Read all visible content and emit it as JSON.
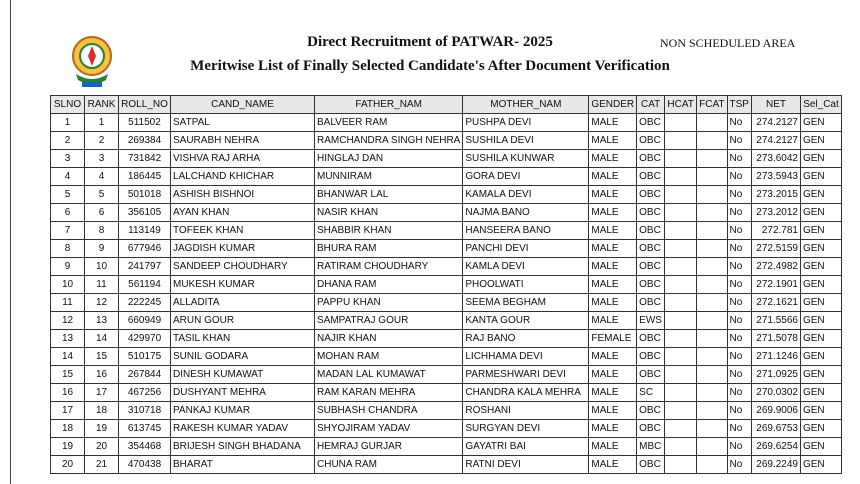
{
  "header": {
    "title": "Direct Recruitment of PATWAR- 2025",
    "area": "NON SCHEDULED AREA",
    "subtitle": "Meritwise List of Finally Selected Candidate's After Document Verification"
  },
  "table": {
    "columns": [
      "SLNO",
      "RANK",
      "ROLL_NO",
      "CAND_NAME",
      "FATHER_NAM",
      "MOTHER_NAM",
      "GENDER",
      "CAT",
      "HCAT",
      "FCAT",
      "TSP",
      "NET",
      "Sel_Cat"
    ],
    "rows": [
      [
        "1",
        "1",
        "511502",
        "SATPAL",
        "BALVEER RAM",
        "PUSHPA DEVI",
        "MALE",
        "OBC",
        null,
        null,
        "No",
        "274.2127",
        "GEN"
      ],
      [
        "2",
        "2",
        "269384",
        "SAURABH NEHRA",
        "RAMCHANDRA SINGH NEHRA",
        "SUSHILA DEVI",
        "MALE",
        "OBC",
        null,
        null,
        "No",
        "274.2127",
        "GEN"
      ],
      [
        "3",
        "3",
        "731842",
        "VISHVA RAJ ARHA",
        "HINGLAJ DAN",
        "SUSHILA KUNWAR",
        "MALE",
        "OBC",
        null,
        null,
        "No",
        "273.6042",
        "GEN"
      ],
      [
        "4",
        "4",
        "186445",
        "LALCHAND KHICHAR",
        "MUNNIRAM",
        "GORA DEVI",
        "MALE",
        "OBC",
        null,
        null,
        "No",
        "273.5943",
        "GEN"
      ],
      [
        "5",
        "5",
        "501018",
        "ASHISH BISHNOI",
        "BHANWAR LAL",
        "KAMALA DEVI",
        "MALE",
        "OBC",
        null,
        null,
        "No",
        "273.2015",
        "GEN"
      ],
      [
        "6",
        "6",
        "356105",
        "AYAN KHAN",
        "NASIR KHAN",
        "NAJMA BANO",
        "MALE",
        "OBC",
        null,
        null,
        "No",
        "273.2012",
        "GEN"
      ],
      [
        "7",
        "8",
        "113149",
        "TOFEEK KHAN",
        "SHABBIR KHAN",
        "HANSEERA BANO",
        "MALE",
        "OBC",
        null,
        null,
        "No",
        "272.781",
        "GEN"
      ],
      [
        "8",
        "9",
        "677946",
        "JAGDISH KUMAR",
        "BHURA RAM",
        "PANCHI DEVI",
        "MALE",
        "OBC",
        null,
        null,
        "No",
        "272.5159",
        "GEN"
      ],
      [
        "9",
        "10",
        "241797",
        "SANDEEP CHOUDHARY",
        "RATIRAM CHOUDHARY",
        "KAMLA DEVI",
        "MALE",
        "OBC",
        null,
        null,
        "No",
        "272.4982",
        "GEN"
      ],
      [
        "10",
        "11",
        "561194",
        "MUKESH KUMAR",
        "DHANA RAM",
        "PHOOLWATI",
        "MALE",
        "OBC",
        null,
        null,
        "No",
        "272.1901",
        "GEN"
      ],
      [
        "11",
        "12",
        "222245",
        "ALLADITA",
        "PAPPU KHAN",
        "SEEMA BEGHAM",
        "MALE",
        "OBC",
        null,
        null,
        "No",
        "272.1621",
        "GEN"
      ],
      [
        "12",
        "13",
        "660949",
        "ARUN GOUR",
        "SAMPATRAJ GOUR",
        "KANTA GOUR",
        "MALE",
        "EWS",
        null,
        null,
        "No",
        "271.5566",
        "GEN"
      ],
      [
        "13",
        "14",
        "429970",
        "TASIL KHAN",
        "NAJIR KHAN",
        "RAJ BANO",
        "FEMALE",
        "OBC",
        null,
        null,
        "No",
        "271.5078",
        "GEN"
      ],
      [
        "14",
        "15",
        "510175",
        "SUNIL GODARA",
        "MOHAN RAM",
        "LICHHAMA DEVI",
        "MALE",
        "OBC",
        null,
        null,
        "No",
        "271.1246",
        "GEN"
      ],
      [
        "15",
        "16",
        "267844",
        "DINESH KUMAWAT",
        "MADAN LAL KUMAWAT",
        "PARMESHWARI DEVI",
        "MALE",
        "OBC",
        null,
        null,
        "No",
        "271.0925",
        "GEN"
      ],
      [
        "16",
        "17",
        "467256",
        "DUSHYANT MEHRA",
        "RAM KARAN MEHRA",
        "CHANDRA KALA MEHRA",
        "MALE",
        "SC",
        null,
        null,
        "No",
        "270.0302",
        "GEN"
      ],
      [
        "17",
        "18",
        "310718",
        "PANKAJ KUMAR",
        "SUBHASH CHANDRA",
        "ROSHANI",
        "MALE",
        "OBC",
        null,
        null,
        "No",
        "269.9006",
        "GEN"
      ],
      [
        "18",
        "19",
        "613745",
        "RAKESH KUMAR YADAV",
        "SHYOJIRAM YADAV",
        "SURGYAN DEVI",
        "MALE",
        "OBC",
        null,
        null,
        "No",
        "269.6753",
        "GEN"
      ],
      [
        "19",
        "20",
        "354468",
        "BRIJESH SINGH BHADANA",
        "HEMRAJ GURJAR",
        "GAYATRI BAI",
        "MALE",
        "MBC",
        null,
        null,
        "No",
        "269.6254",
        "GEN"
      ],
      [
        "20",
        "21",
        "470438",
        "BHARAT",
        "CHUNA RAM",
        "RATNI DEVI",
        "MALE",
        "OBC",
        null,
        null,
        "No",
        "269.2249",
        "GEN"
      ]
    ]
  }
}
